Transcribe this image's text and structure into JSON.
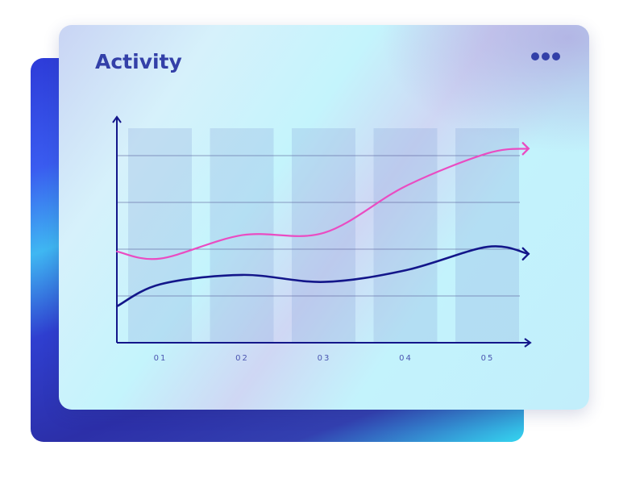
{
  "card": {
    "title": "Activity",
    "menu_icon": "more-horizontal-icon"
  },
  "colors": {
    "accent": "#3340a8",
    "series_pink": "#ea4cc2",
    "series_navy": "#13168a",
    "axis": "#13168a"
  },
  "chart_data": {
    "type": "line",
    "title": "Activity",
    "categories": [
      "01",
      "02",
      "03",
      "04",
      "05"
    ],
    "xlabel": "",
    "ylabel": "",
    "ylim": [
      0,
      4.8
    ],
    "grid": true,
    "background_bars": true,
    "series": [
      {
        "color": "#ea4cc2",
        "x": [
          0.47,
          1,
          2,
          3,
          4,
          5,
          5.5
        ],
        "values": [
          1.95,
          1.8,
          2.3,
          2.35,
          3.35,
          4.05,
          4.15
        ]
      },
      {
        "color": "#13168a",
        "x": [
          0.47,
          1,
          2,
          3,
          4,
          5,
          5.5
        ],
        "values": [
          0.78,
          1.25,
          1.45,
          1.3,
          1.55,
          2.05,
          1.9
        ]
      }
    ]
  }
}
